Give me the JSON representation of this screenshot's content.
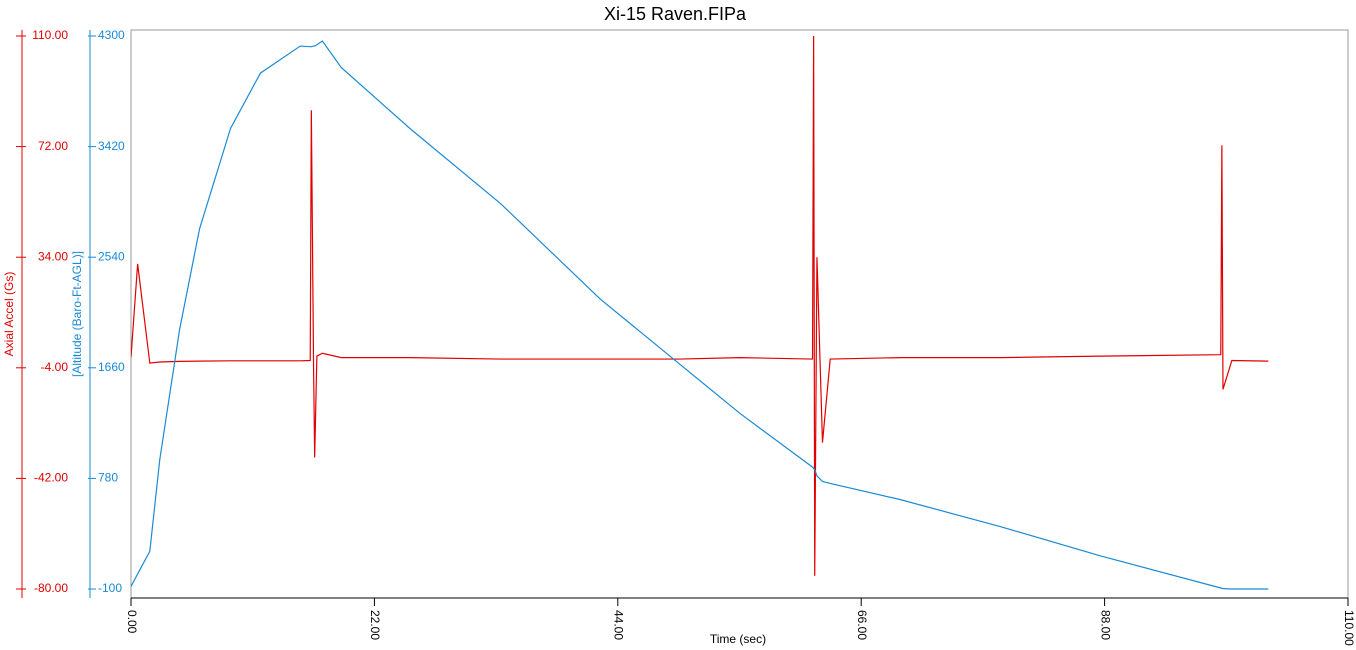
{
  "chart_data": {
    "type": "line",
    "title": "Xi-15 Raven.FIPa",
    "x_label": "Time (sec)",
    "y_label": "Axial Accel (Gs)",
    "y2_label": "[Altitude (Baro-Ft-AGL)]",
    "x": [
      0,
      0.6,
      1.7,
      2.6,
      4.4,
      6.2,
      9.0,
      11.7,
      15.3,
      16.2,
      16.3,
      16.5,
      16.6,
      16.8,
      17.3,
      19,
      25.2,
      33.4,
      42.4,
      49.6,
      55,
      61.6,
      61.7,
      61.8,
      62.0,
      62.5,
      63.2,
      69.5,
      78.6,
      87.6,
      98.5,
      98.6,
      98.7,
      99.5,
      102.8
    ],
    "series": [
      {
        "name": "Axial Accel (Gs)",
        "color": "#e00000",
        "values": [
          -0.3,
          31.7,
          -2.4,
          -2,
          -1.8,
          -1.7,
          -1.6,
          -1.6,
          -1.6,
          -1.5,
          84.5,
          -3,
          -34.8,
          0,
          1,
          -0.5,
          -0.5,
          -1,
          -1,
          -1,
          -0.5,
          -1,
          110,
          -75.5,
          34,
          -29.7,
          -1,
          -0.5,
          -0.5,
          0,
          0.5,
          72.4,
          -11.4,
          -1.5,
          -1.7
        ]
      },
      {
        "name": "[Altitude (Baro-Ft-AGL)]",
        "color": "#1a8ad4",
        "axis": "y2",
        "values": [
          -80,
          20,
          200,
          930,
          1968,
          2767,
          3565,
          4005,
          4220,
          4215,
          4215,
          4220,
          4220,
          4230,
          4260,
          4050,
          3565,
          2967,
          2208,
          1689,
          1300,
          870,
          860,
          850,
          800,
          756,
          740,
          612,
          396,
          164,
          -92,
          -95,
          -97,
          -100,
          -100
        ]
      }
    ],
    "xlim": [
      0,
      110
    ],
    "xticks": [
      {
        "value": 0,
        "label": "0.00"
      },
      {
        "value": 22,
        "label": "22.00"
      },
      {
        "value": 44,
        "label": "44.00"
      },
      {
        "value": 66,
        "label": "66.00"
      },
      {
        "value": 88,
        "label": "88.00"
      },
      {
        "value": 110,
        "label": "110.00"
      }
    ],
    "ylim": [
      -80,
      110
    ],
    "yticks": [
      {
        "value": -80,
        "label": "-80.00"
      },
      {
        "value": -42,
        "label": "-42.00"
      },
      {
        "value": -4,
        "label": "-4.00"
      },
      {
        "value": 34,
        "label": "34.00"
      },
      {
        "value": 72,
        "label": "72.00"
      },
      {
        "value": 110,
        "label": "110.00"
      }
    ],
    "y2lim": [
      -100,
      4300
    ],
    "y2ticks": [
      -100,
      780,
      1660,
      2540,
      3420,
      4300
    ]
  }
}
